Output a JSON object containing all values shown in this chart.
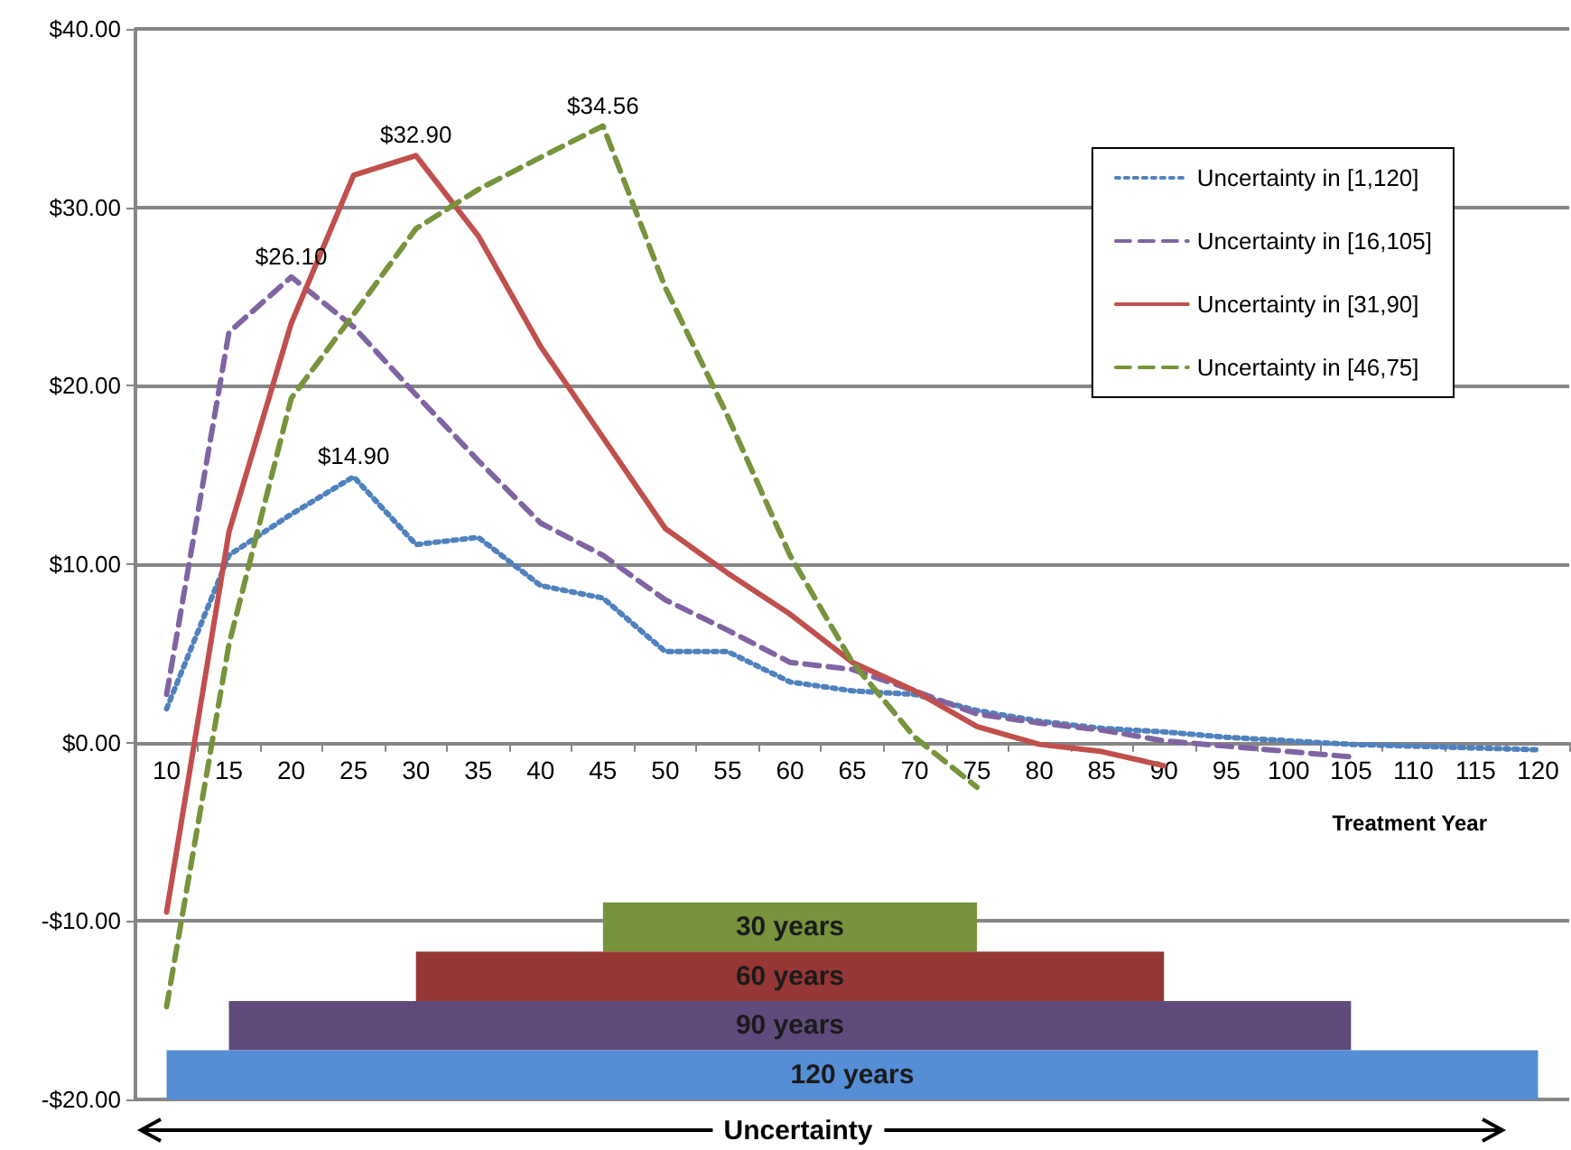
{
  "chart_data": {
    "type": "line",
    "xlabel": "Treatment Year",
    "categories": [
      "10",
      "15",
      "20",
      "25",
      "30",
      "35",
      "40",
      "45",
      "50",
      "55",
      "60",
      "65",
      "70",
      "75",
      "80",
      "85",
      "90",
      "95",
      "100",
      "105",
      "110",
      "115",
      "120"
    ],
    "series": [
      {
        "name": "Uncertainty in [1,120]",
        "color": "#4f81bd",
        "line_style": "dotted",
        "values": [
          1.9,
          10.5,
          12.8,
          14.9,
          11.1,
          11.5,
          8.8,
          8.1,
          5.1,
          5.1,
          3.4,
          2.9,
          2.7,
          1.8,
          1.2,
          0.8,
          0.6,
          0.3,
          0.1,
          -0.1,
          -0.2,
          -0.3,
          -0.4
        ],
        "value_labels": [
          null,
          null,
          null,
          "$14.90",
          null,
          null,
          null,
          null,
          null,
          null,
          null,
          null,
          null,
          null,
          null,
          null,
          null,
          null,
          null,
          null,
          null,
          null,
          null
        ]
      },
      {
        "name": "Uncertainty in [16,105]",
        "color": "#8064a2",
        "line_style": "dashed",
        "values": [
          2.7,
          23,
          26.1,
          23.3,
          19.5,
          15.8,
          12.3,
          10.5,
          8.0,
          6.3,
          4.5,
          4.1,
          2.9,
          1.6,
          1.1,
          0.7,
          0.1,
          -0.2,
          -0.5,
          -0.8,
          null,
          null,
          null
        ],
        "value_labels": [
          null,
          null,
          "$26.10",
          null,
          null,
          null,
          null,
          null,
          null,
          null,
          null,
          null,
          null,
          null,
          null,
          null,
          null,
          null,
          null,
          null,
          null,
          null,
          null
        ]
      },
      {
        "name": "Uncertainty in [31,90]",
        "color": "#c0504d",
        "line_style": "solid",
        "values": [
          -9.5,
          11.8,
          23.5,
          31.8,
          32.9,
          28.4,
          22.2,
          17.1,
          12.0,
          9.5,
          7.2,
          4.5,
          2.9,
          0.9,
          -0.1,
          -0.5,
          -1.3,
          null,
          null,
          null,
          null,
          null,
          null
        ],
        "value_labels": [
          null,
          null,
          null,
          null,
          "$32.90",
          null,
          null,
          null,
          null,
          null,
          null,
          null,
          null,
          null,
          null,
          null,
          null,
          null,
          null,
          null,
          null,
          null,
          null
        ]
      },
      {
        "name": "Uncertainty in [46,75]",
        "color": "#77933c",
        "line_style": "dashed",
        "values": [
          -14.8,
          5.5,
          19.3,
          24,
          28.8,
          31,
          32.8,
          34.56,
          25.5,
          18.3,
          10.5,
          4.5,
          0.3,
          -2.5,
          null,
          null,
          null,
          null,
          null,
          null,
          null,
          null,
          null
        ],
        "value_labels": [
          null,
          null,
          null,
          null,
          null,
          null,
          null,
          "$34.56",
          null,
          null,
          null,
          null,
          null,
          null,
          null,
          null,
          null,
          null,
          null,
          null,
          null,
          null,
          null
        ]
      }
    ],
    "ylim": [
      -20,
      40
    ],
    "yticks": [
      {
        "value": -20,
        "label": "-$20.00"
      },
      {
        "value": -10,
        "label": "-$10.00"
      },
      {
        "value": 0,
        "label": "$0.00"
      },
      {
        "value": 10,
        "label": "$10.00"
      },
      {
        "value": 20,
        "label": "$20.00"
      },
      {
        "value": 30,
        "label": "$30.00"
      },
      {
        "value": 40,
        "label": "$40.00"
      }
    ],
    "bands": [
      {
        "axis": "x",
        "from": "45",
        "to": "75",
        "label": "30 years",
        "color": "#77933c"
      },
      {
        "axis": "x",
        "from": "30",
        "to": "90",
        "label": "60 years",
        "color": "#953735"
      },
      {
        "axis": "x",
        "from": "15",
        "to": "105",
        "label": "90 years",
        "color": "#604a7b"
      },
      {
        "axis": "x",
        "from": "10",
        "to": "120",
        "label": "120 years",
        "color": "#558ed5"
      }
    ],
    "annotations": [
      "Uncertainty"
    ],
    "grid": "y",
    "legend": "top right",
    "marker": "none"
  }
}
